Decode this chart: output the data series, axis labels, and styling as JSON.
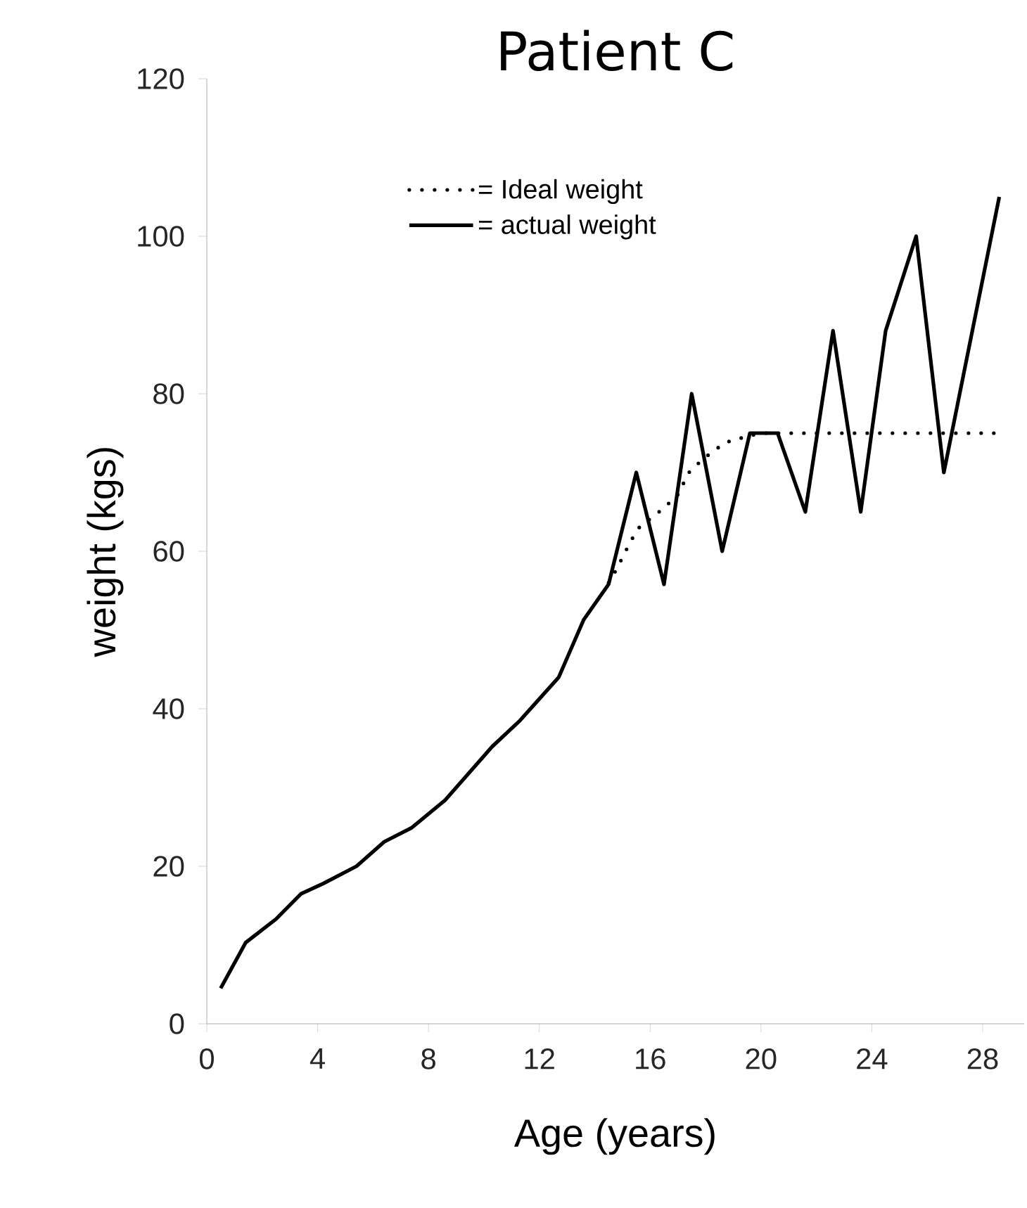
{
  "chart_data": {
    "type": "line",
    "title": "Patient C",
    "xlabel": "Age (years)",
    "ylabel": "weight (kgs)",
    "xlim": [
      0,
      29.5
    ],
    "ylim": [
      0,
      120
    ],
    "xticks": [
      0,
      4,
      8,
      12,
      16,
      20,
      24,
      28
    ],
    "yticks": [
      0,
      20,
      40,
      60,
      80,
      100,
      120
    ],
    "grid": false,
    "legend": "top left",
    "marker": "none",
    "series": [
      {
        "name": "= Ideal weight",
        "color": "#000000",
        "line_style": "dotted",
        "x": [
          14.5,
          14.8,
          15.3,
          15.6,
          16.5,
          17.0,
          17.4,
          17.9,
          18.7,
          19.4,
          20.0,
          28.5
        ],
        "values": [
          56,
          57.8,
          61.3,
          63,
          65.5,
          67.2,
          70,
          71.7,
          73.8,
          74.5,
          75,
          75
        ]
      },
      {
        "name": "= actual weight",
        "color": "#000000",
        "line_style": "solid",
        "x": [
          0.5,
          1.4,
          2.5,
          3.4,
          4.2,
          5.4,
          6.4,
          7.4,
          8.6,
          10.3,
          11.3,
          12.7,
          13.6,
          14.5,
          15.5,
          16.5,
          17.5,
          18.6,
          19.6,
          20.6,
          21.6,
          22.6,
          23.6,
          24.5,
          25.6,
          26.6,
          28.6
        ],
        "values": [
          4.5,
          10.3,
          13.3,
          16.5,
          17.8,
          20,
          23.1,
          24.9,
          28.4,
          35.2,
          38.5,
          44,
          51.3,
          55.8,
          70,
          55.8,
          80,
          60,
          75,
          75,
          65,
          88,
          65,
          88,
          100,
          70,
          105
        ]
      }
    ]
  }
}
